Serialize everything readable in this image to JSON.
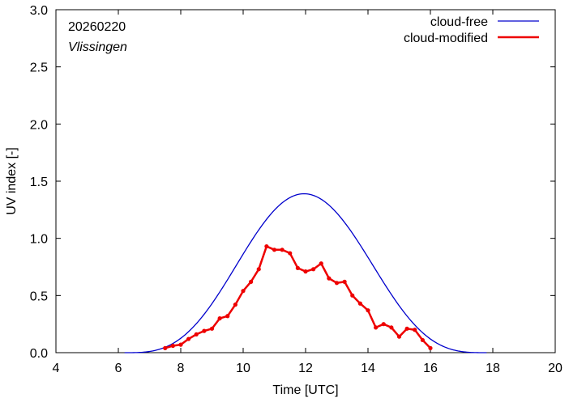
{
  "chart_data": {
    "type": "line",
    "title": "",
    "annotations": {
      "date": "20260220",
      "station": "Vlissingen"
    },
    "xlabel": "Time  [UTC]",
    "ylabel": "UV index  [-]",
    "xlim": [
      4,
      20
    ],
    "ylim": [
      0,
      3.0
    ],
    "xticks": [
      4,
      6,
      8,
      10,
      12,
      14,
      16,
      18,
      20
    ],
    "xtick_labels": [
      "4",
      "6",
      "8",
      "10",
      "12",
      "14",
      "16",
      "18",
      "20"
    ],
    "yticks": [
      0,
      0.5,
      1.0,
      1.5,
      2.0,
      2.5,
      3.0
    ],
    "ytick_labels": [
      "0.0",
      "0.5",
      "1.0",
      "1.5",
      "2.0",
      "2.5",
      "3.0"
    ],
    "grid": false,
    "legend_position": "top-right",
    "series": [
      {
        "name": "cloud-free",
        "color": "#0000cc",
        "style": "line",
        "model": "solar-bell",
        "start": 6.2,
        "end": 17.8,
        "peak_x": 11.95,
        "peak_y": 1.39
      },
      {
        "name": "cloud-modified",
        "color": "#ee0000",
        "style": "line-points",
        "x": [
          7.5,
          7.75,
          8.0,
          8.25,
          8.5,
          8.75,
          9.0,
          9.25,
          9.5,
          9.75,
          10.0,
          10.25,
          10.5,
          10.75,
          11.0,
          11.25,
          11.5,
          11.75,
          12.0,
          12.25,
          12.5,
          12.75,
          13.0,
          13.25,
          13.5,
          13.75,
          14.0,
          14.25,
          14.5,
          14.75,
          15.0,
          15.25,
          15.5,
          15.75,
          16.0
        ],
        "y": [
          0.04,
          0.06,
          0.07,
          0.12,
          0.16,
          0.19,
          0.21,
          0.3,
          0.32,
          0.42,
          0.54,
          0.62,
          0.73,
          0.93,
          0.9,
          0.9,
          0.87,
          0.74,
          0.71,
          0.73,
          0.78,
          0.65,
          0.61,
          0.62,
          0.5,
          0.43,
          0.37,
          0.22,
          0.25,
          0.22,
          0.14,
          0.21,
          0.2,
          0.11,
          0.04
        ]
      }
    ]
  }
}
